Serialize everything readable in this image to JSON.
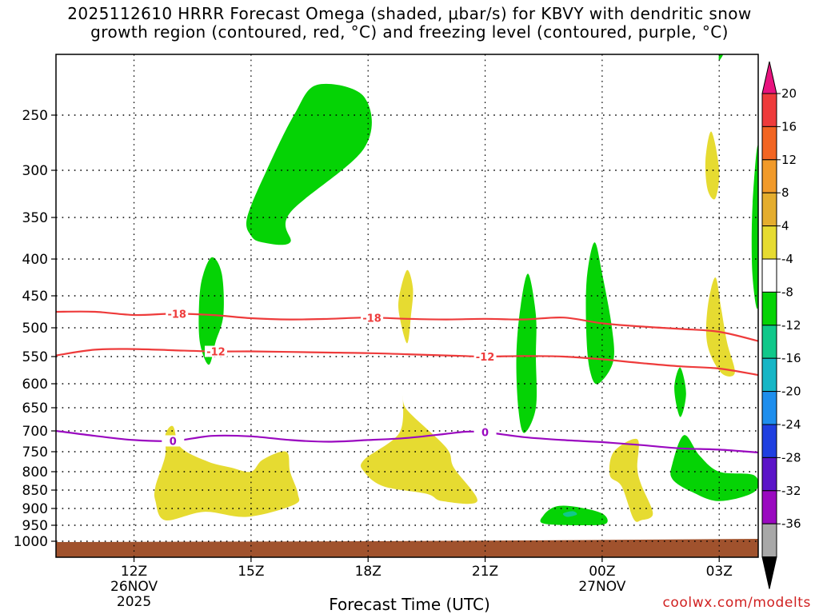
{
  "chart_data": {
    "type": "heatmap",
    "title": "2025112610 HRRR Forecast Omega (shaded, μbar/s) for KBVY with dendritic snow\ngrowth region (contoured, red, °C) and freezing level (contoured, purple, °C)",
    "xlabel": "Forecast Time (UTC)",
    "ylabel": "",
    "x_range_hours": [
      10.0,
      28.0
    ],
    "x_ticks": [
      {
        "hour": 12,
        "label": "12Z",
        "date": "26NOV",
        "year": "2025"
      },
      {
        "hour": 15,
        "label": "15Z",
        "date": "",
        "year": ""
      },
      {
        "hour": 18,
        "label": "18Z",
        "date": "",
        "year": ""
      },
      {
        "hour": 21,
        "label": "21Z",
        "date": "",
        "year": ""
      },
      {
        "hour": 24,
        "label": "00Z",
        "date": "27NOV",
        "year": ""
      },
      {
        "hour": 27,
        "label": "03Z",
        "date": "",
        "year": ""
      }
    ],
    "y_ticks": [
      {
        "p": 250,
        "label": "250"
      },
      {
        "p": 300,
        "label": "300"
      },
      {
        "p": 350,
        "label": "350"
      },
      {
        "p": 400,
        "label": "400"
      },
      {
        "p": 450,
        "label": "450"
      },
      {
        "p": 500,
        "label": "500"
      },
      {
        "p": 550,
        "label": "550"
      },
      {
        "p": 600,
        "label": "600"
      },
      {
        "p": 650,
        "label": "650"
      },
      {
        "p": 700,
        "label": "700"
      },
      {
        "p": 750,
        "label": "750"
      },
      {
        "p": 800,
        "label": "800"
      },
      {
        "p": 850,
        "label": "850"
      },
      {
        "p": 900,
        "label": "900"
      },
      {
        "p": 950,
        "label": "950"
      },
      {
        "p": 1000,
        "label": "1000"
      }
    ],
    "colorbar": {
      "labels": [
        "20",
        "16",
        "12",
        "8",
        "4",
        "-4",
        "-8",
        "-12",
        "-16",
        "-20",
        "-24",
        "-28",
        "-32",
        "-36"
      ],
      "colors": [
        "#e8137e",
        "#ee3b3b",
        "#f26522",
        "#f19a2a",
        "#e4ad2e",
        "#e6db31",
        "#ffffff",
        "#05d305",
        "#10c88a",
        "#16b6c6",
        "#1e8eed",
        "#1f3fe0",
        "#5b14c8",
        "#9a09c0",
        "#a8a8a8",
        "#000000"
      ]
    },
    "contours": [
      {
        "name": "dgz-minus18",
        "label": "-18",
        "color": "#ee3b3b",
        "points": [
          [
            10,
            475
          ],
          [
            11,
            475
          ],
          [
            12,
            480
          ],
          [
            13,
            478
          ],
          [
            14,
            480
          ],
          [
            15,
            485
          ],
          [
            16,
            487
          ],
          [
            17,
            486
          ],
          [
            18,
            484
          ],
          [
            19,
            486
          ],
          [
            20,
            487
          ],
          [
            21,
            486
          ],
          [
            22,
            487
          ],
          [
            23,
            484
          ],
          [
            24,
            493
          ],
          [
            25,
            498
          ],
          [
            26,
            502
          ],
          [
            27,
            507
          ],
          [
            28,
            523
          ]
        ],
        "label_hours": [
          13.1,
          18.1
        ]
      },
      {
        "name": "dgz-minus12",
        "label": "-12",
        "color": "#ee3b3b",
        "points": [
          [
            10,
            548
          ],
          [
            11,
            538
          ],
          [
            12,
            537
          ],
          [
            13,
            539
          ],
          [
            14,
            541
          ],
          [
            15,
            541
          ],
          [
            16,
            542
          ],
          [
            17,
            543
          ],
          [
            18,
            544
          ],
          [
            19,
            546
          ],
          [
            20,
            548
          ],
          [
            21,
            550
          ],
          [
            22,
            549
          ],
          [
            23,
            550
          ],
          [
            24,
            555
          ],
          [
            25,
            562
          ],
          [
            26,
            568
          ],
          [
            27,
            572
          ],
          [
            28,
            584
          ]
        ],
        "label_hours": [
          14.1,
          21.0
        ]
      },
      {
        "name": "freezing-level",
        "label": "0",
        "color": "#9a09c0",
        "points": [
          [
            10,
            700
          ],
          [
            11,
            712
          ],
          [
            12,
            722
          ],
          [
            13,
            724
          ],
          [
            14,
            712
          ],
          [
            15,
            713
          ],
          [
            16,
            722
          ],
          [
            17,
            726
          ],
          [
            18,
            722
          ],
          [
            19,
            717
          ],
          [
            20,
            707
          ],
          [
            20.5,
            702
          ],
          [
            21,
            703
          ],
          [
            22,
            715
          ],
          [
            23,
            722
          ],
          [
            24,
            727
          ],
          [
            25,
            734
          ],
          [
            26,
            742
          ],
          [
            27,
            745
          ],
          [
            28,
            752
          ]
        ],
        "label_hours": [
          13.0,
          21.0
        ]
      }
    ],
    "shaded_regions": [
      {
        "name": "omega-neg4-upper-green",
        "category": "-4 to -8",
        "color": "#05d305",
        "points": [
          [
            15.3,
            380
          ],
          [
            16.0,
            380
          ],
          [
            16.0,
            345
          ],
          [
            17.9,
            280
          ],
          [
            17.9,
            235
          ],
          [
            16.7,
            225
          ],
          [
            16.1,
            250
          ],
          [
            15.4,
            300
          ],
          [
            14.9,
            350
          ],
          [
            15.0,
            372
          ]
        ]
      },
      {
        "name": "omega-neg4-green-0530",
        "category": "-4 to -8",
        "color": "#05d305",
        "points": [
          [
            13.92,
            565
          ],
          [
            14.09,
            525
          ],
          [
            14.29,
            480
          ],
          [
            14.25,
            420
          ],
          [
            13.99,
            398
          ],
          [
            13.73,
            430
          ],
          [
            13.66,
            480
          ],
          [
            13.7,
            530
          ]
        ]
      },
      {
        "name": "omega-neg4-green-0560",
        "category": "-4 to -8",
        "color": "#05d305",
        "points": [
          [
            22.0,
            705
          ],
          [
            22.3,
            650
          ],
          [
            22.3,
            550
          ],
          [
            22.3,
            480
          ],
          [
            22.1,
            420
          ],
          [
            21.9,
            470
          ],
          [
            21.8,
            550
          ],
          [
            21.85,
            650
          ]
        ]
      },
      {
        "name": "omega-neg4-green-0600",
        "category": "-4 to -8",
        "color": "#05d305",
        "points": [
          [
            23.9,
            600
          ],
          [
            24.28,
            560
          ],
          [
            24.25,
            500
          ],
          [
            24.0,
            420
          ],
          [
            23.8,
            380
          ],
          [
            23.6,
            430
          ],
          [
            23.6,
            520
          ],
          [
            23.7,
            580
          ]
        ]
      },
      {
        "name": "omega-neg4-green-0640",
        "category": "-4 to -8",
        "color": "#05d305",
        "points": [
          [
            26.0,
            670
          ],
          [
            26.15,
            620
          ],
          [
            26.0,
            570
          ],
          [
            25.85,
            610
          ]
        ]
      },
      {
        "name": "omega-neg4-green-0800",
        "category": "-4 to -8",
        "color": "#05d305",
        "points": [
          [
            25.8,
            780
          ],
          [
            25.8,
            820
          ],
          [
            26.3,
            855
          ],
          [
            27.0,
            880
          ],
          [
            27.9,
            855
          ],
          [
            27.9,
            810
          ],
          [
            27.0,
            800
          ],
          [
            26.5,
            760
          ],
          [
            26.1,
            710
          ]
        ]
      },
      {
        "name": "omega-neg4-green-0900",
        "category": "-4 to -8",
        "color": "#05d305",
        "points": [
          [
            22.5,
            920
          ],
          [
            22.5,
            945
          ],
          [
            23.5,
            950
          ],
          [
            24.1,
            945
          ],
          [
            24.0,
            915
          ],
          [
            23.3,
            895
          ],
          [
            22.8,
            895
          ]
        ]
      },
      {
        "name": "omega-neg4-green-right-edge",
        "category": "-4 to -8",
        "color": "#05d305",
        "points": [
          [
            27.85,
            340
          ],
          [
            28.0,
            280
          ],
          [
            28.0,
            460
          ],
          [
            27.85,
            420
          ]
        ]
      },
      {
        "name": "omega-neg4-green-top",
        "category": "-4 to -8",
        "color": "#05d305",
        "points": [
          [
            27.0,
            185
          ],
          [
            27.1,
            185
          ],
          [
            27.0,
            205
          ]
        ]
      },
      {
        "name": "omega-neg8-teal",
        "category": "-8 to -12",
        "color": "#10c88a",
        "points": [
          [
            23.0,
            915
          ],
          [
            23.25,
            908
          ],
          [
            23.35,
            918
          ],
          [
            23.1,
            925
          ]
        ]
      },
      {
        "name": "omega-pos4-yellow-0480",
        "category": "4 to 8",
        "color": "#e6db31",
        "points": [
          [
            19.0,
            527
          ],
          [
            19.1,
            480
          ],
          [
            19.15,
            440
          ],
          [
            19.0,
            415
          ],
          [
            18.8,
            450
          ],
          [
            18.8,
            480
          ]
        ]
      },
      {
        "name": "omega-pos4-yellow-0290",
        "category": "4 to 8",
        "color": "#e6db31",
        "points": [
          [
            26.9,
            330
          ],
          [
            27.0,
            300
          ],
          [
            26.8,
            265
          ],
          [
            26.65,
            290
          ],
          [
            26.7,
            320
          ]
        ]
      },
      {
        "name": "omega-pos4-yellow-0520",
        "category": "4 to 8",
        "color": "#e6db31",
        "points": [
          [
            27.05,
            580
          ],
          [
            27.4,
            580
          ],
          [
            27.2,
            525
          ],
          [
            27.05,
            470
          ],
          [
            26.9,
            425
          ],
          [
            26.7,
            470
          ],
          [
            26.7,
            530
          ]
        ]
      },
      {
        "name": "omega-pos4-yellow-0800a",
        "category": "4 to 8",
        "color": "#e6db31",
        "points": [
          [
            12.8,
            935
          ],
          [
            13.8,
            910
          ],
          [
            14.9,
            925
          ],
          [
            16.1,
            890
          ],
          [
            16.2,
            860
          ],
          [
            16.0,
            800
          ],
          [
            15.9,
            750
          ],
          [
            15.3,
            770
          ],
          [
            15.0,
            800
          ],
          [
            14.5,
            790
          ],
          [
            13.9,
            775
          ],
          [
            13.2,
            740
          ],
          [
            13.0,
            690
          ],
          [
            12.8,
            710
          ],
          [
            12.8,
            760
          ],
          [
            12.55,
            840
          ],
          [
            12.55,
            880
          ]
        ]
      },
      {
        "name": "omega-pos4-yellow-0800b",
        "category": "4 to 8",
        "color": "#e6db31",
        "points": [
          [
            19.9,
            880
          ],
          [
            20.8,
            880
          ],
          [
            20.2,
            790
          ],
          [
            20.0,
            740
          ],
          [
            19.0,
            655
          ],
          [
            18.9,
            625
          ],
          [
            18.8,
            705
          ],
          [
            17.9,
            770
          ],
          [
            17.9,
            800
          ],
          [
            18.4,
            840
          ],
          [
            19.5,
            860
          ]
        ]
      },
      {
        "name": "omega-pos4-yellow-0830",
        "category": "4 to 8",
        "color": "#e6db31",
        "points": [
          [
            25.0,
            935
          ],
          [
            25.3,
            915
          ],
          [
            25.0,
            835
          ],
          [
            24.9,
            790
          ],
          [
            24.9,
            720
          ],
          [
            24.3,
            750
          ],
          [
            24.2,
            810
          ],
          [
            24.5,
            840
          ],
          [
            24.8,
            930
          ]
        ]
      }
    ],
    "terrain": {
      "label": "surface",
      "color": "#a0522d"
    }
  },
  "credit": "coolwx.com/modelts"
}
